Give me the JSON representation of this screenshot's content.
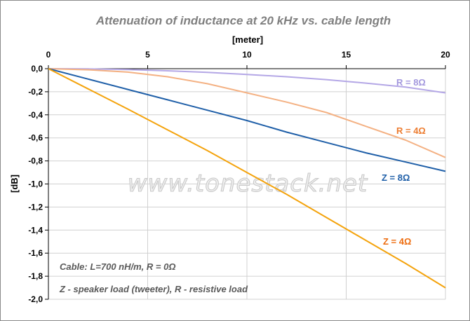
{
  "chart_data": {
    "type": "line",
    "title": "Attenuation of inductance at 20 kHz vs. cable length",
    "xlabel": "[meter]",
    "ylabel": "[dB]",
    "xlim": [
      0,
      20
    ],
    "ylim": [
      -2.0,
      0.0
    ],
    "x_ticks": [
      "0",
      "5",
      "10",
      "15",
      "20"
    ],
    "y_ticks": [
      "0,0",
      "-0,2",
      "-0,4",
      "-0,6",
      "-0,8",
      "-1,0",
      "-1,2",
      "-1,4",
      "-1,6",
      "-1,8",
      "-2,0"
    ],
    "x_axis_position": "top",
    "grid": true,
    "series": [
      {
        "name": "R = 8Ω",
        "color": "#b4a7e6",
        "x": [
          0,
          2,
          4,
          6,
          8,
          10,
          12,
          14,
          16,
          18,
          20
        ],
        "y": [
          0,
          -0.002,
          -0.008,
          -0.018,
          -0.032,
          -0.05,
          -0.07,
          -0.095,
          -0.125,
          -0.16,
          -0.21
        ]
      },
      {
        "name": "R = 4Ω",
        "color": "#f4b183",
        "x": [
          0,
          2,
          4,
          6,
          8,
          10,
          12,
          14,
          16,
          18,
          20
        ],
        "y": [
          0,
          -0.01,
          -0.03,
          -0.07,
          -0.13,
          -0.21,
          -0.29,
          -0.38,
          -0.5,
          -0.62,
          -0.77
        ]
      },
      {
        "name": "Z = 8Ω",
        "color": "#1f5fa8",
        "x": [
          0,
          2,
          4,
          6,
          8,
          10,
          12,
          14,
          16,
          18,
          20
        ],
        "y": [
          0,
          -0.09,
          -0.18,
          -0.27,
          -0.36,
          -0.45,
          -0.55,
          -0.64,
          -0.73,
          -0.81,
          -0.89
        ]
      },
      {
        "name": "Z = 4Ω",
        "color": "#f4a30c",
        "x": [
          0,
          2,
          4,
          6,
          8,
          10,
          12,
          14,
          16,
          18,
          20
        ],
        "y": [
          0,
          -0.175,
          -0.35,
          -0.53,
          -0.71,
          -0.9,
          -1.09,
          -1.29,
          -1.49,
          -1.69,
          -1.9
        ]
      }
    ],
    "series_label_colors": [
      "#a398de",
      "#ed7d31",
      "#1f5fa8",
      "#ed6d10"
    ],
    "annotations": [
      "Cable:  L=700 nH/m,  R = 0Ω",
      "Z - speaker load  (tweeter),  R - resistive load"
    ],
    "watermark": "www.tonestack.net"
  }
}
